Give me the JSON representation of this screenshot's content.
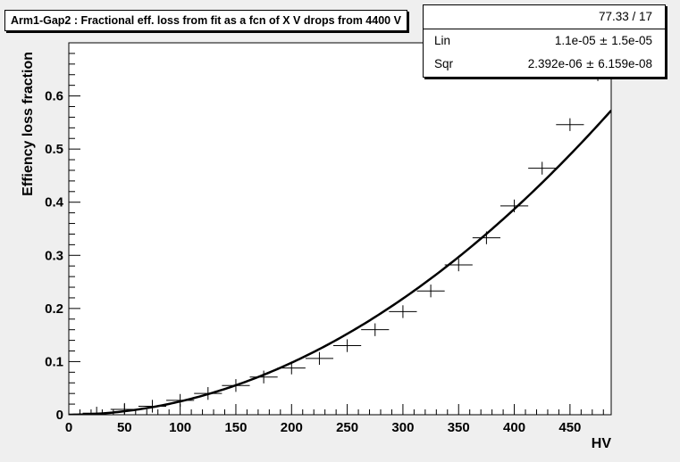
{
  "title_box": {
    "text": "Arm1-Gap2 : Fractional eff. loss from fit as a fcn of X V drops from 4400 V"
  },
  "stats": {
    "chi2": "77.33 / 17",
    "rows": [
      {
        "label": "Lin",
        "value": "1.1e-05",
        "pm": "±",
        "error": "1.5e-05"
      },
      {
        "label": "Sqr",
        "value": "2.392e-06",
        "pm": "±",
        "error": "6.159e-08"
      }
    ]
  },
  "chart_data": {
    "type": "scatter",
    "title": "Arm1-Gap2 : Fractional eff. loss from fit as a fcn of X V drops from 4400 V",
    "xlabel": "HV",
    "ylabel": "Effiency loss fraction",
    "xlim": [
      0,
      487
    ],
    "ylim": [
      0,
      0.7
    ],
    "x_ticks": [
      0,
      50,
      100,
      150,
      200,
      250,
      300,
      350,
      400,
      450
    ],
    "y_ticks": [
      0,
      0.1,
      0.2,
      0.3,
      0.4,
      0.5,
      0.6
    ],
    "y_tick_labels": [
      "0",
      "0.1",
      "0.2",
      "0.3",
      "0.4",
      "0.5",
      "0.6"
    ],
    "series": [
      {
        "kind": "points_with_errors",
        "x": [
          25,
          50,
          75,
          100,
          125,
          150,
          175,
          200,
          225,
          250,
          275,
          300,
          325,
          350,
          375,
          400,
          425,
          450,
          475
        ],
        "y": [
          0.003,
          0.01,
          0.016,
          0.027,
          0.04,
          0.055,
          0.071,
          0.088,
          0.106,
          0.13,
          0.16,
          0.194,
          0.233,
          0.282,
          0.333,
          0.393,
          0.464,
          0.546,
          0.64
        ],
        "xerr": 12.5,
        "yerr": 0.012
      },
      {
        "kind": "fit_curve",
        "function": "Lin*x + Sqr*x^2",
        "params": {
          "Lin": 1.1e-05,
          "Sqr": 2.392e-06
        },
        "x_range": [
          0,
          487
        ]
      }
    ],
    "grid": false,
    "legend": "none"
  }
}
